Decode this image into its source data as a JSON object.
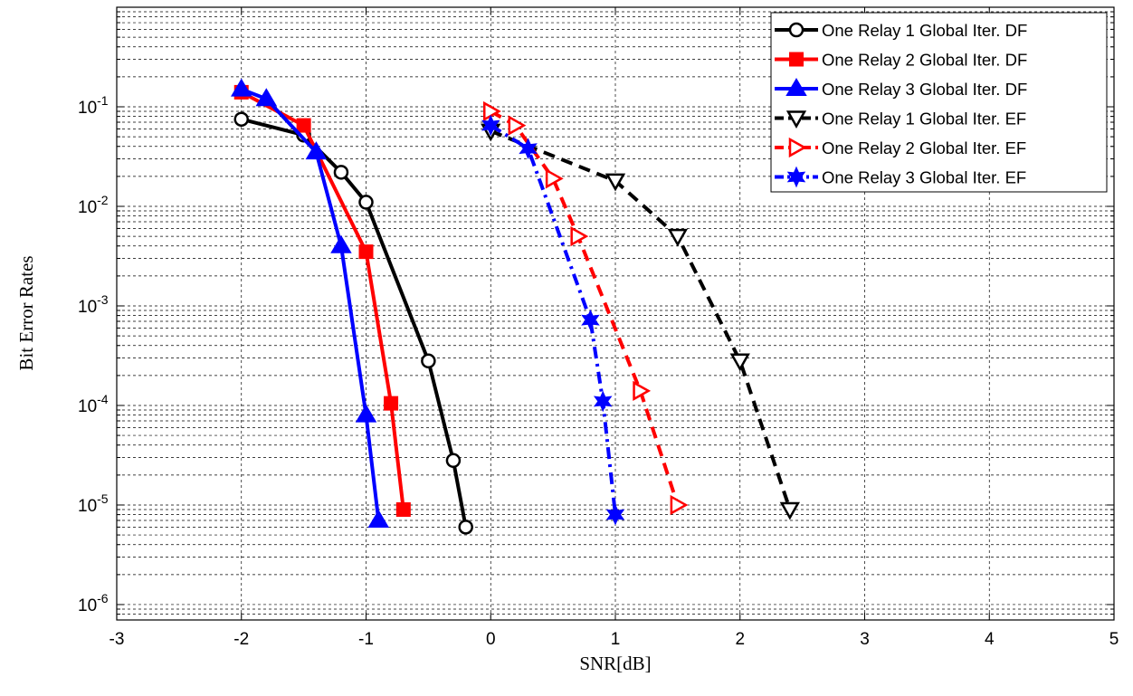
{
  "chart_data": {
    "type": "line",
    "title": "",
    "xlabel": "SNR[dB]",
    "ylabel": "Bit Error Rates",
    "xlim": [
      -3,
      5
    ],
    "ylim": [
      7e-07,
      1
    ],
    "yscale": "log",
    "grid": true,
    "legend_position": "top-right",
    "x_ticks": [
      "-3",
      "-2",
      "-1",
      "0",
      "1",
      "2",
      "3",
      "4",
      "5"
    ],
    "y_ticks": [
      {
        "base": "10",
        "exp": "-6"
      },
      {
        "base": "10",
        "exp": "-5"
      },
      {
        "base": "10",
        "exp": "-4"
      },
      {
        "base": "10",
        "exp": "-3"
      },
      {
        "base": "10",
        "exp": "-2"
      },
      {
        "base": "10",
        "exp": "-1"
      }
    ],
    "series": [
      {
        "name": "One Relay 1 Global Iter. DF",
        "color": "#000000",
        "dash": "solid",
        "marker": "circle",
        "x": [
          -2,
          -1.5,
          -1.2,
          -1,
          -0.5,
          -0.3,
          -0.2
        ],
        "y": [
          0.075,
          0.052,
          0.022,
          0.011,
          0.00028,
          2.8e-05,
          6e-06
        ]
      },
      {
        "name": "One Relay 2 Global Iter. DF",
        "color": "#ff0000",
        "dash": "solid",
        "marker": "square",
        "x": [
          -2,
          -1.5,
          -1,
          -0.8,
          -0.7
        ],
        "y": [
          0.14,
          0.065,
          0.0035,
          0.000105,
          9e-06
        ]
      },
      {
        "name": "One Relay 3 Global Iter. DF",
        "color": "#0000ff",
        "dash": "solid",
        "marker": "triangle-up",
        "x": [
          -2,
          -1.8,
          -1.4,
          -1.2,
          -1,
          -0.9
        ],
        "y": [
          0.15,
          0.12,
          0.035,
          0.004,
          8e-05,
          7e-06
        ]
      },
      {
        "name": "One Relay 1 Global Iter. EF",
        "color": "#000000",
        "dash": "dashed",
        "marker": "triangle-down",
        "x": [
          0,
          1,
          1.5,
          2,
          2.4
        ],
        "y": [
          0.057,
          0.018,
          0.005,
          0.00028,
          9e-06
        ]
      },
      {
        "name": "One Relay 2 Global Iter. EF",
        "color": "#ff0000",
        "dash": "dashed",
        "marker": "triangle-right",
        "x": [
          0,
          0.2,
          0.5,
          0.7,
          1.2,
          1.5
        ],
        "y": [
          0.09,
          0.065,
          0.019,
          0.005,
          0.00014,
          1e-05
        ]
      },
      {
        "name": "One Relay 3 Global Iter. EF",
        "color": "#0000ff",
        "dash": "dashdot",
        "marker": "hexagram",
        "x": [
          0,
          0.3,
          0.8,
          0.9,
          1
        ],
        "y": [
          0.065,
          0.038,
          0.00072,
          0.00011,
          8e-06
        ]
      }
    ]
  }
}
